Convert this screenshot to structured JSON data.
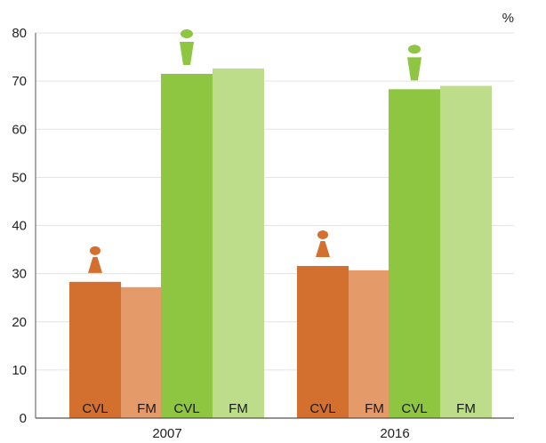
{
  "chart_data": {
    "type": "bar",
    "unit_label": "%",
    "ylim": [
      0,
      80
    ],
    "yticks": [
      "0",
      "10",
      "20",
      "30",
      "40",
      "50",
      "60",
      "70",
      "80"
    ],
    "categories": [
      "2007",
      "2016"
    ],
    "grid": true,
    "groups": [
      {
        "category": "2007",
        "bars": [
          {
            "label": "CVL",
            "value": 28.3,
            "color": "#d4702f",
            "icon": "female-icon"
          },
          {
            "label": "FM",
            "value": 27.2,
            "color": "#e59a6a",
            "icon": null
          },
          {
            "label": "CVL",
            "value": 71.5,
            "color": "#8ec641",
            "icon": "male-icon"
          },
          {
            "label": "FM",
            "value": 72.6,
            "color": "#bedd8a",
            "icon": null
          }
        ]
      },
      {
        "category": "2016",
        "bars": [
          {
            "label": "CVL",
            "value": 31.6,
            "color": "#d4702f",
            "icon": "female-icon"
          },
          {
            "label": "FM",
            "value": 30.7,
            "color": "#e59a6a",
            "icon": null
          },
          {
            "label": "CVL",
            "value": 68.3,
            "color": "#8ec641",
            "icon": "male-icon"
          },
          {
            "label": "FM",
            "value": 69.0,
            "color": "#bedd8a",
            "icon": null
          }
        ]
      }
    ]
  }
}
